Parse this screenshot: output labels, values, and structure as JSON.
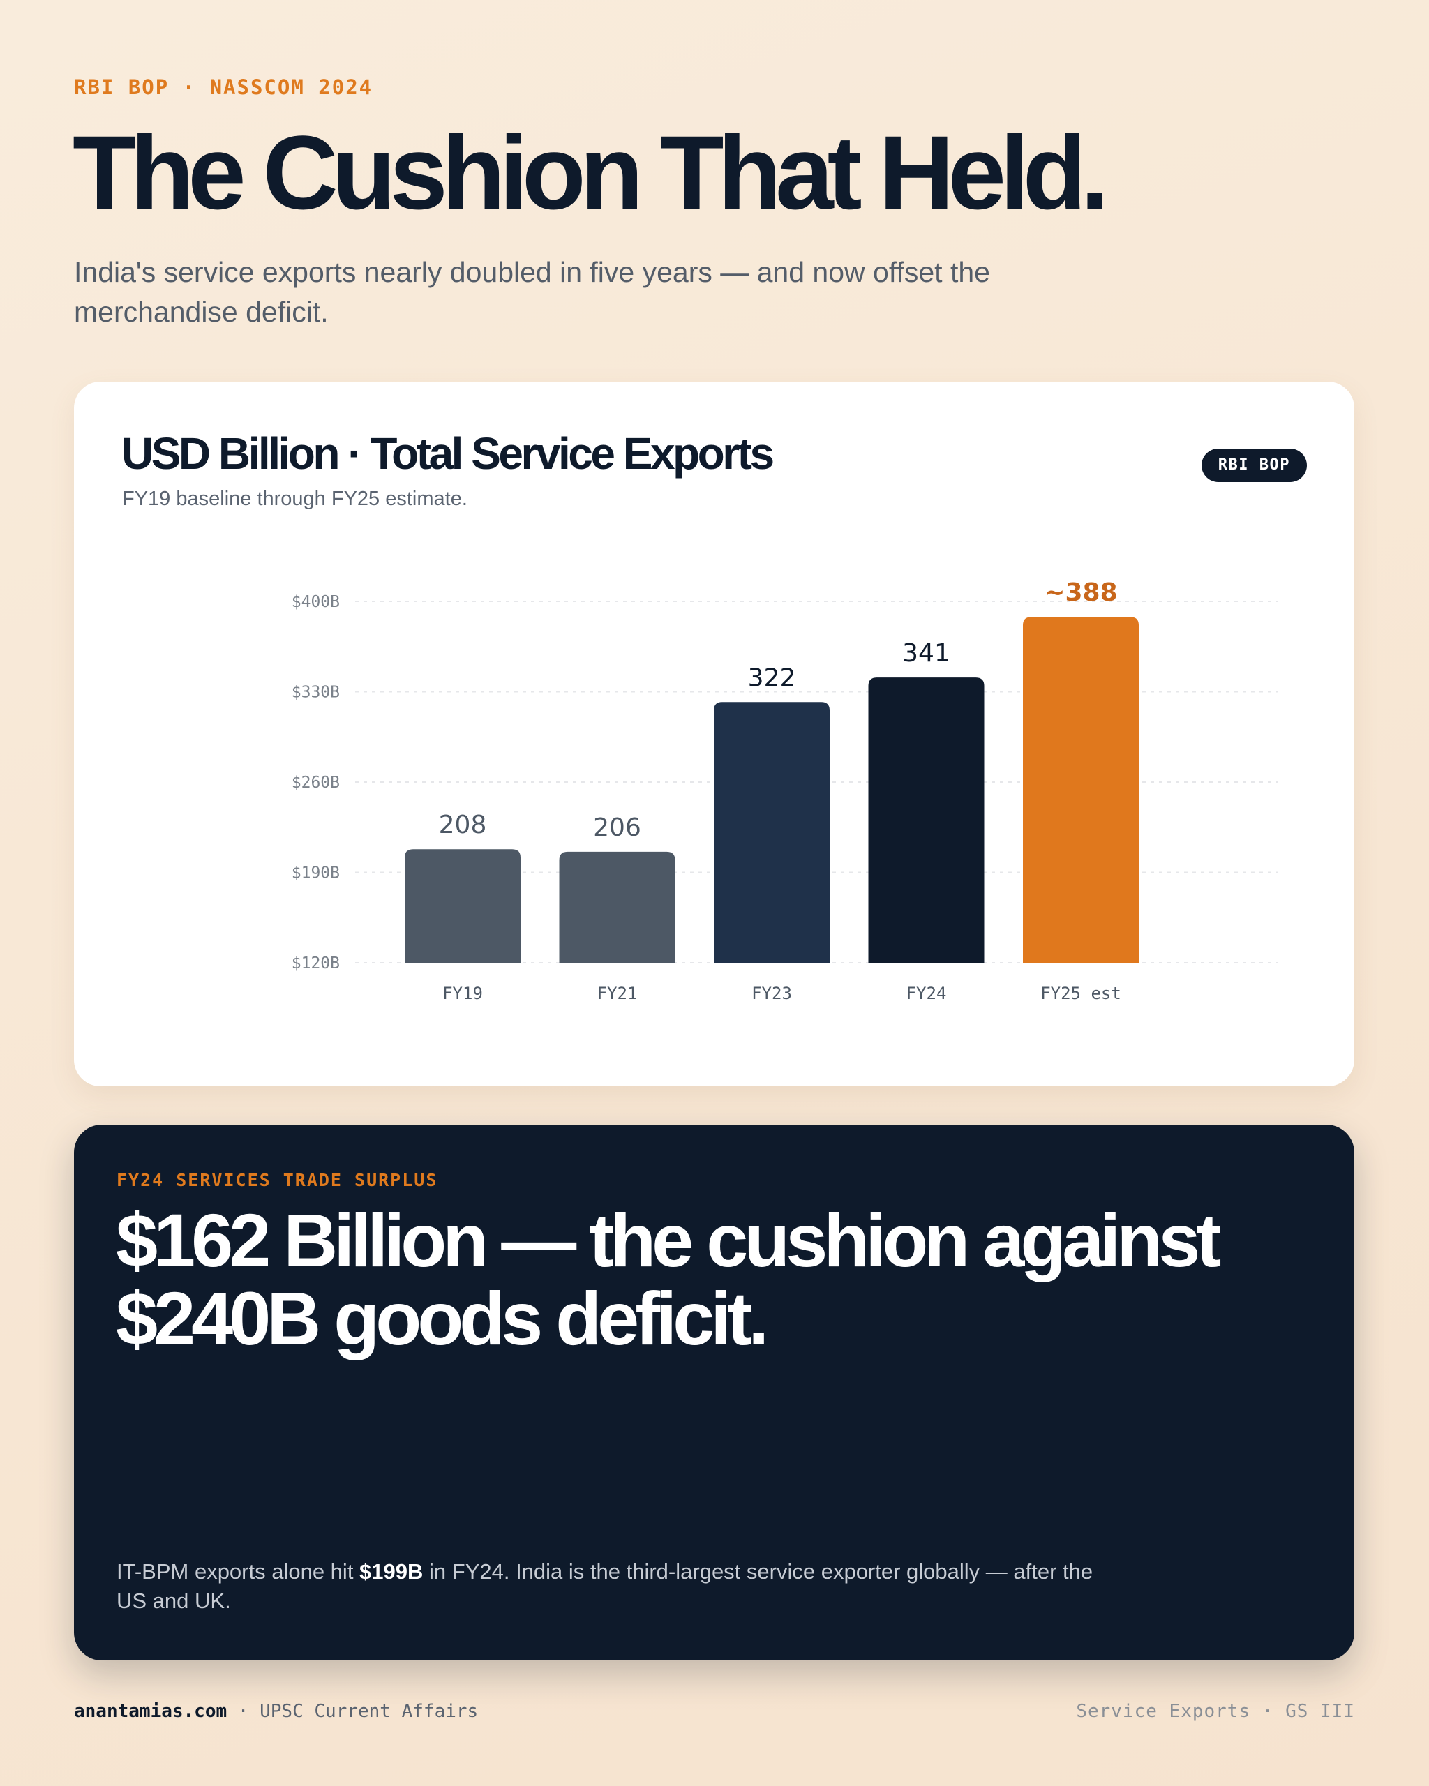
{
  "header": {
    "eyebrow": "RBI BOP · NASSCOM 2024",
    "title": "The Cushion That Held.",
    "subtitle": "India's service exports nearly doubled in five years — and now offset the merchandise deficit."
  },
  "chart_card": {
    "title": "USD Billion · Total Service Exports",
    "subtitle": "FY19 baseline through FY25 estimate.",
    "badge": "RBI BOP"
  },
  "chart_data": {
    "type": "bar",
    "title": "USD Billion · Total Service Exports",
    "subtitle": "FY19 baseline through FY25 estimate.",
    "categories": [
      "FY19",
      "FY21",
      "FY23",
      "FY24",
      "FY25 est"
    ],
    "values": [
      208,
      206,
      322,
      341,
      388
    ],
    "value_labels": [
      "208",
      "206",
      "322",
      "341",
      "~388"
    ],
    "y_ticks": [
      120,
      190,
      260,
      330,
      400
    ],
    "y_tick_labels": [
      "$120B",
      "$190B",
      "$260B",
      "$330B",
      "$400B"
    ],
    "ylim": [
      120,
      400
    ],
    "grid": true,
    "bar_colors": [
      "#4d5865",
      "#4d5865",
      "#1f314a",
      "#0e1a2b",
      "#e0781d"
    ],
    "label_colors": [
      "#4d5865",
      "#4d5865",
      "#0e1a2b",
      "#0e1a2b",
      "#c8661a"
    ]
  },
  "highlight": {
    "eyebrow": "FY24 SERVICES TRADE SURPLUS",
    "headline": "$162 Billion — the cushion against $240B goods deficit.",
    "body_prefix": "IT-BPM exports alone hit ",
    "body_strong": "$199B",
    "body_suffix": " in FY24. India is the third-largest service exporter globally — after the US and UK."
  },
  "footer": {
    "site": "anantamias.com",
    "section": " · UPSC Current Affairs",
    "right": "Service Exports · GS III"
  }
}
